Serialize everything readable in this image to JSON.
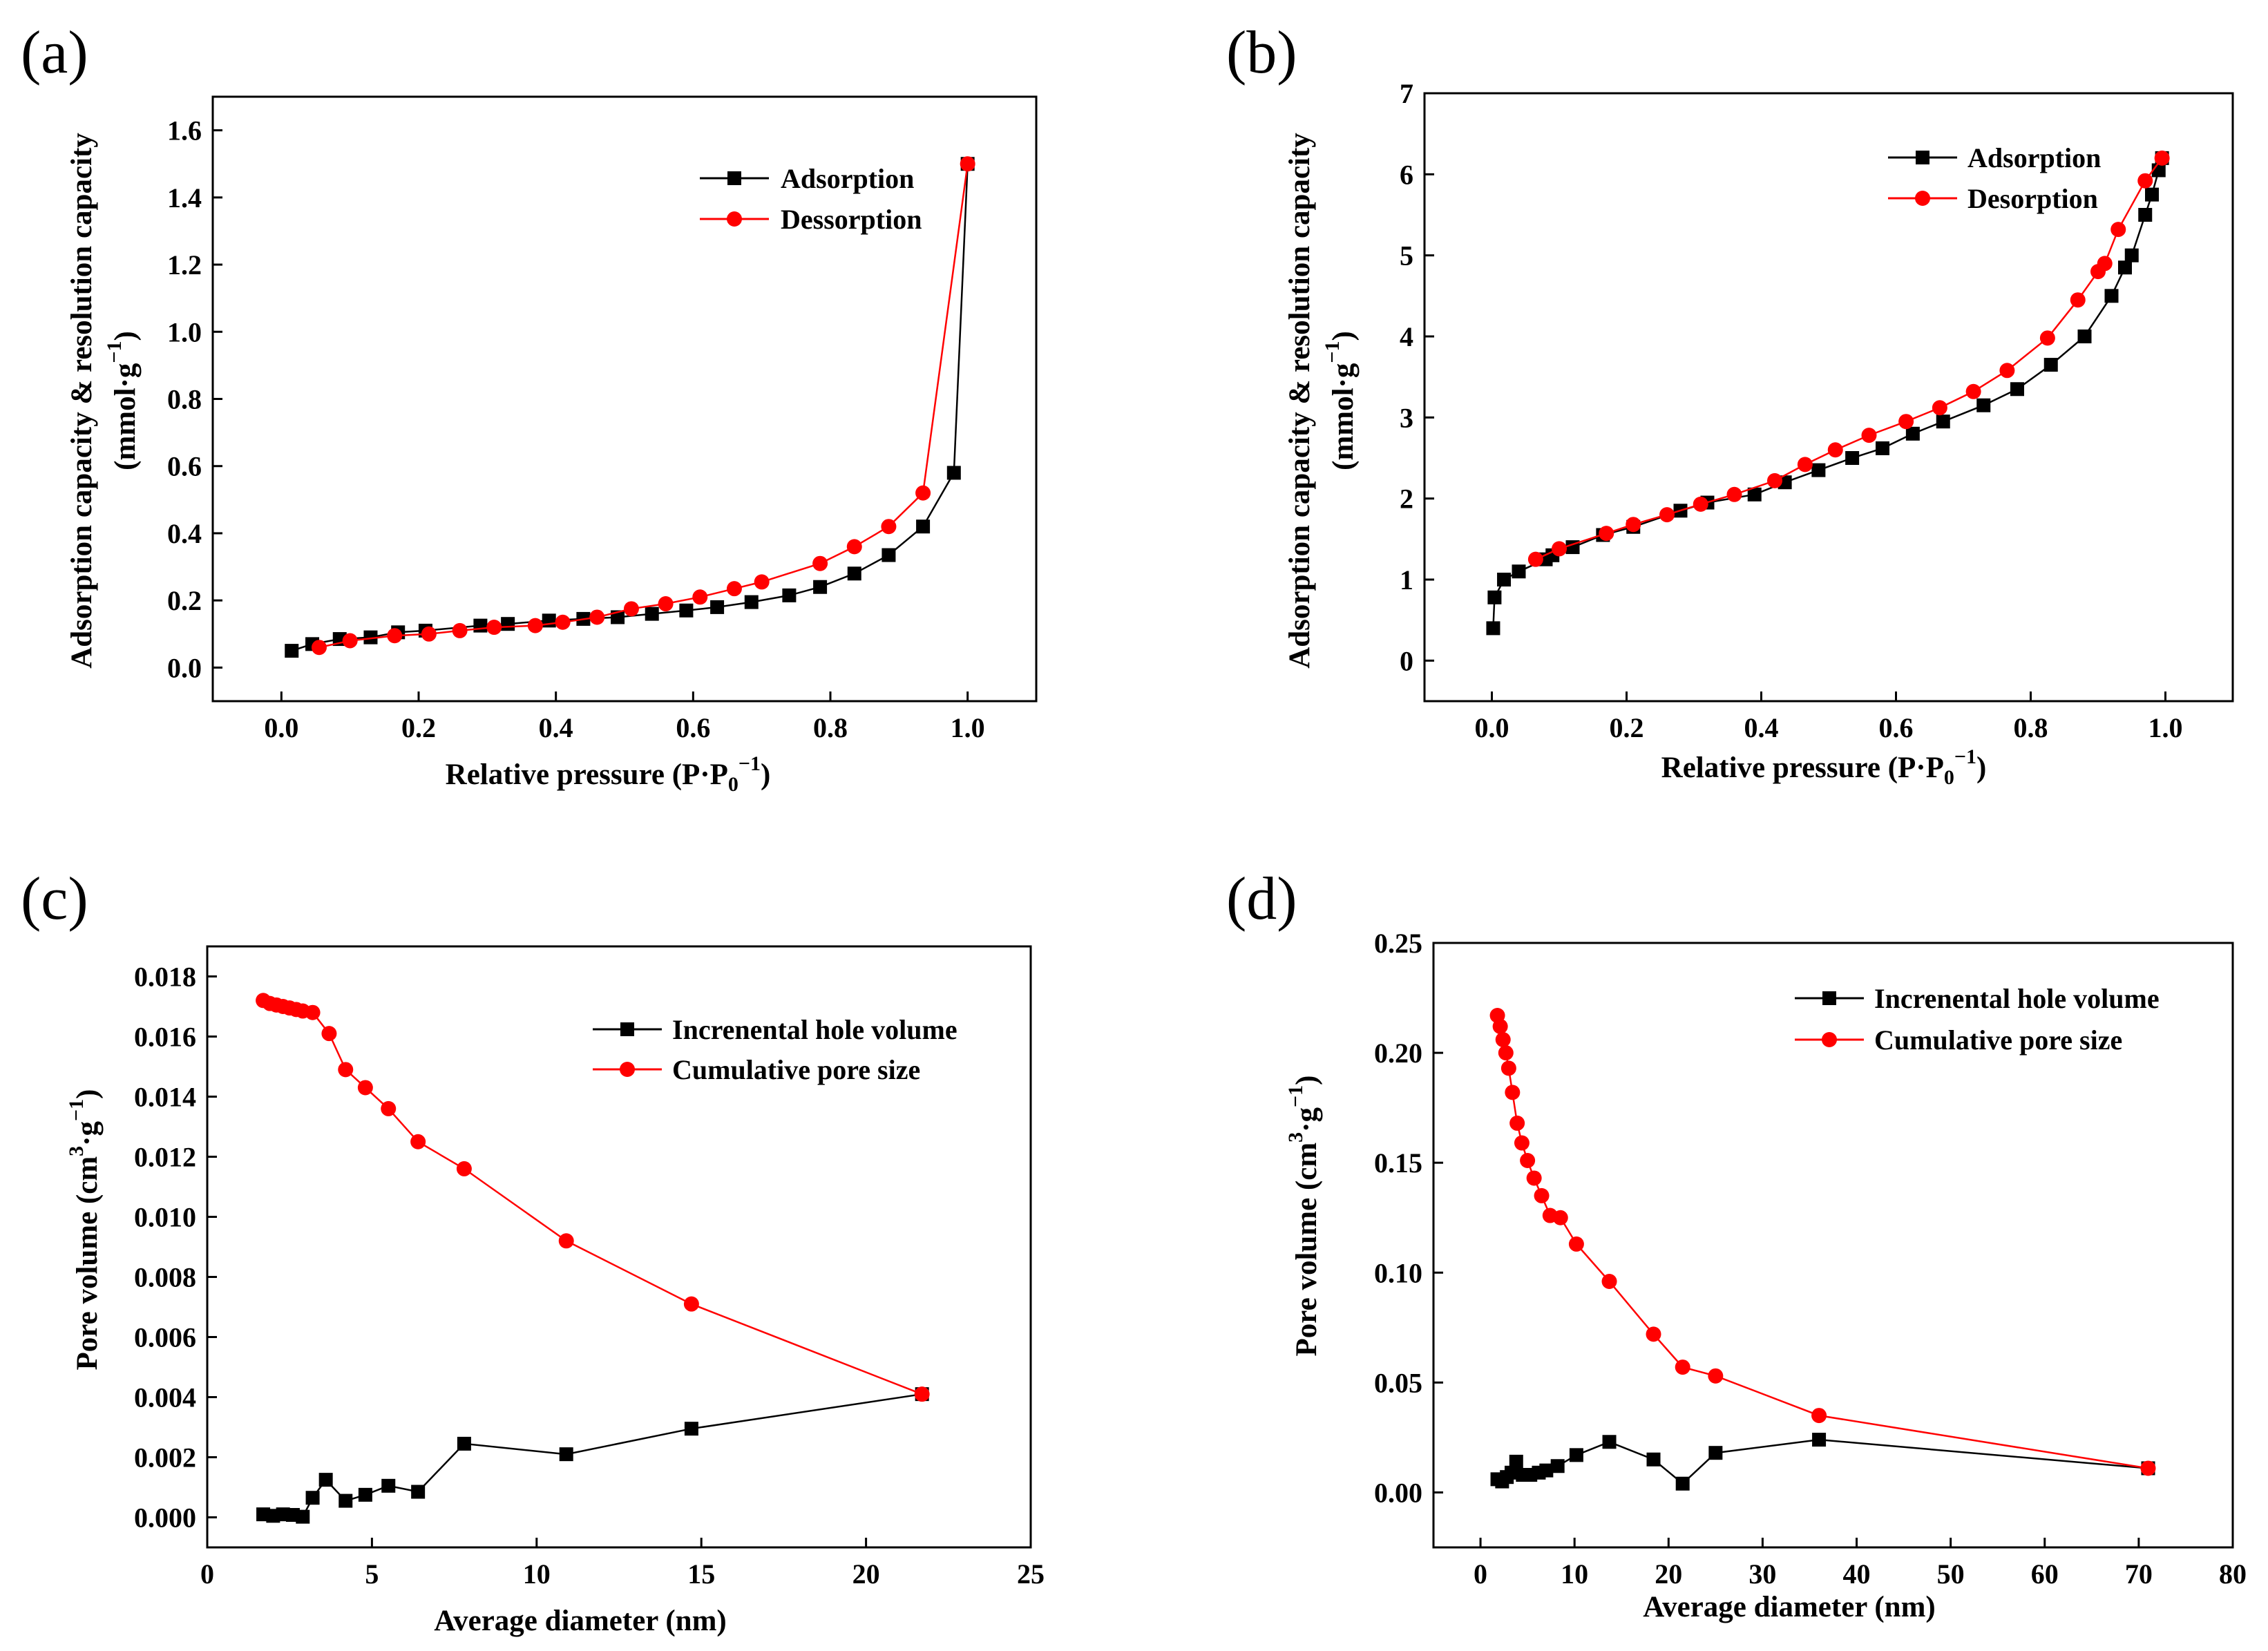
{
  "figure": {
    "panels": [
      "(a)",
      "(b)",
      "(c)",
      "(d)"
    ]
  },
  "colors": {
    "adsorption": "#000000",
    "desorption": "#ff0000",
    "axis": "#000000"
  },
  "chart_data": [
    {
      "id": "a",
      "type": "line",
      "panel_label": "(a)",
      "xlabel": "Relative pressure (P·P0−1)",
      "xlabel_main": "Relative pressure (P·P",
      "xlabel_sub": "0",
      "xlabel_sup": "−1",
      "xlabel_close": ")",
      "ylabel": "Adsorption capacity & resolution capacity (mmol·g−1)",
      "ylabel_line1": "Adsorption capacity & resolution capacity",
      "ylabel_line2_main": "(mmol·g",
      "ylabel_line2_sup": "−1",
      "ylabel_line2_close": ")",
      "xlim": [
        -0.1,
        1.1
      ],
      "ylim": [
        -0.1,
        1.7
      ],
      "xticks": [
        0.0,
        0.2,
        0.4,
        0.6,
        0.8,
        1.0
      ],
      "xtick_labels": [
        "0.0",
        "0.2",
        "0.4",
        "0.6",
        "0.8",
        "1.0"
      ],
      "yticks": [
        0.0,
        0.2,
        0.4,
        0.6,
        0.8,
        1.0,
        1.2,
        1.4,
        1.6
      ],
      "ytick_labels": [
        "0.0",
        "0.2",
        "0.4",
        "0.6",
        "0.8",
        "1.0",
        "1.2",
        "1.4",
        "1.6"
      ],
      "legend": [
        "Adsorption",
        "Dessorption"
      ],
      "series": [
        {
          "name": "Adsorption",
          "marker": "square",
          "x": [
            0.015,
            0.045,
            0.085,
            0.13,
            0.17,
            0.21,
            0.29,
            0.33,
            0.39,
            0.44,
            0.49,
            0.54,
            0.59,
            0.635,
            0.685,
            0.74,
            0.785,
            0.835,
            0.885,
            0.935,
            0.98,
            1.0
          ],
          "y": [
            0.05,
            0.07,
            0.085,
            0.09,
            0.105,
            0.11,
            0.125,
            0.13,
            0.14,
            0.145,
            0.15,
            0.16,
            0.17,
            0.18,
            0.195,
            0.215,
            0.24,
            0.28,
            0.335,
            0.42,
            0.58,
            1.5
          ]
        },
        {
          "name": "Dessorption",
          "marker": "circle",
          "x": [
            0.055,
            0.1,
            0.165,
            0.215,
            0.26,
            0.31,
            0.37,
            0.41,
            0.46,
            0.51,
            0.56,
            0.61,
            0.66,
            0.7,
            0.785,
            0.835,
            0.885,
            0.935,
            1.0
          ],
          "y": [
            0.06,
            0.08,
            0.095,
            0.1,
            0.11,
            0.12,
            0.125,
            0.135,
            0.15,
            0.175,
            0.19,
            0.21,
            0.235,
            0.255,
            0.31,
            0.36,
            0.42,
            0.52,
            1.5
          ]
        }
      ]
    },
    {
      "id": "b",
      "type": "line",
      "panel_label": "(b)",
      "xlabel": "Relative pressure (P·P0−1)",
      "xlabel_main": "Relative pressure (P·P",
      "xlabel_sub": "0",
      "xlabel_sup": "−1",
      "xlabel_close": ")",
      "ylabel": "Adsorption capacity & resolution capacity (mmol·g−1)",
      "ylabel_line1": "Adsorption capacity & resolution capacity",
      "ylabel_line2_main": "(mmol·g",
      "ylabel_line2_sup": "−1",
      "ylabel_line2_close": ")",
      "xlim": [
        -0.1,
        1.1
      ],
      "ylim": [
        -0.5,
        7
      ],
      "xticks": [
        0.0,
        0.2,
        0.4,
        0.6,
        0.8,
        1.0
      ],
      "xtick_labels": [
        "0.0",
        "0.2",
        "0.4",
        "0.6",
        "0.8",
        "1.0"
      ],
      "yticks": [
        0,
        1,
        2,
        3,
        4,
        5,
        6,
        7
      ],
      "ytick_labels": [
        "0",
        "1",
        "2",
        "3",
        "4",
        "5",
        "6",
        "7"
      ],
      "legend": [
        "Adsorption",
        "Desorption"
      ],
      "series": [
        {
          "name": "Adsorption",
          "marker": "square",
          "x": [
            0.002,
            0.004,
            0.018,
            0.04,
            0.08,
            0.09,
            0.12,
            0.165,
            0.21,
            0.28,
            0.32,
            0.39,
            0.435,
            0.485,
            0.535,
            0.58,
            0.625,
            0.67,
            0.73,
            0.78,
            0.83,
            0.88,
            0.92,
            0.94,
            0.95,
            0.97,
            0.98,
            0.99,
            0.995
          ],
          "y": [
            0.4,
            0.78,
            1.0,
            1.1,
            1.25,
            1.3,
            1.4,
            1.55,
            1.65,
            1.85,
            1.95,
            2.05,
            2.2,
            2.35,
            2.5,
            2.62,
            2.8,
            2.95,
            3.15,
            3.35,
            3.65,
            4.0,
            4.5,
            4.85,
            5.0,
            5.5,
            5.75,
            6.05,
            6.2
          ]
        },
        {
          "name": "Desorption",
          "marker": "circle",
          "x": [
            0.065,
            0.1,
            0.17,
            0.21,
            0.26,
            0.31,
            0.36,
            0.42,
            0.465,
            0.51,
            0.56,
            0.615,
            0.665,
            0.715,
            0.765,
            0.825,
            0.87,
            0.9,
            0.91,
            0.93,
            0.97,
            0.995
          ],
          "y": [
            1.25,
            1.38,
            1.57,
            1.68,
            1.8,
            1.93,
            2.05,
            2.22,
            2.42,
            2.6,
            2.78,
            2.95,
            3.12,
            3.32,
            3.58,
            3.98,
            4.45,
            4.8,
            4.9,
            5.32,
            5.92,
            6.2
          ]
        }
      ]
    },
    {
      "id": "c",
      "type": "line",
      "panel_label": "(c)",
      "xlabel": "Average diameter (nm)",
      "ylabel": "Pore volume (cm3·g−1)",
      "ylabel_main": "Pore volume (cm",
      "ylabel_sup1": "3",
      "ylabel_mid": "·g",
      "ylabel_sup2": "−1",
      "ylabel_close": ")",
      "xlim": [
        0,
        25
      ],
      "ylim": [
        -0.001,
        0.019
      ],
      "xticks": [
        0,
        5,
        10,
        15,
        20,
        25
      ],
      "xtick_labels": [
        "0",
        "5",
        "10",
        "15",
        "20",
        "25"
      ],
      "yticks": [
        0.0,
        0.002,
        0.004,
        0.006,
        0.008,
        0.01,
        0.012,
        0.014,
        0.016,
        0.018
      ],
      "ytick_labels": [
        "0.000",
        "0.002",
        "0.004",
        "0.006",
        "0.008",
        "0.010",
        "0.012",
        "0.014",
        "0.016",
        "0.018"
      ],
      "legend": [
        "Increnental hole volume",
        "Cumulative pore size"
      ],
      "series": [
        {
          "name": "Increnental hole volume",
          "marker": "square",
          "x": [
            1.7,
            2.0,
            2.3,
            2.6,
            2.9,
            3.2,
            3.6,
            4.2,
            4.8,
            5.5,
            6.4,
            7.8,
            10.9,
            14.7,
            21.7
          ],
          "y": [
            0.0001,
            5e-05,
            0.0001,
            8e-05,
            2e-05,
            0.00065,
            0.00125,
            0.00055,
            0.00075,
            0.00105,
            0.00085,
            0.00245,
            0.0021,
            0.00295,
            0.0041
          ]
        },
        {
          "name": "Cumulative pore size",
          "marker": "circle",
          "x": [
            1.7,
            1.9,
            2.1,
            2.3,
            2.5,
            2.7,
            2.9,
            3.2,
            3.7,
            4.2,
            4.8,
            5.5,
            6.4,
            7.8,
            10.9,
            14.7,
            21.7
          ],
          "y": [
            0.0172,
            0.0171,
            0.01705,
            0.017,
            0.01695,
            0.0169,
            0.01685,
            0.0168,
            0.0161,
            0.0149,
            0.0143,
            0.0136,
            0.0125,
            0.0116,
            0.0092,
            0.0071,
            0.0041
          ]
        }
      ]
    },
    {
      "id": "d",
      "type": "line",
      "panel_label": "(d)",
      "xlabel": "Average diameter (nm)",
      "ylabel": "Pore volume (cm3·g−1)",
      "ylabel_main": "Pore volume (cm",
      "ylabel_sup1": "3",
      "ylabel_mid": "·g",
      "ylabel_sup2": "−1",
      "ylabel_close": ")",
      "xlim": [
        -5,
        80
      ],
      "ylim": [
        -0.025,
        0.25
      ],
      "xticks": [
        0,
        10,
        20,
        30,
        40,
        50,
        60,
        70,
        80
      ],
      "xtick_labels": [
        "0",
        "10",
        "20",
        "30",
        "40",
        "50",
        "60",
        "70",
        "80"
      ],
      "yticks": [
        0.0,
        0.05,
        0.1,
        0.15,
        0.2,
        0.25
      ],
      "ytick_labels": [
        "0.00",
        "0.05",
        "0.10",
        "0.15",
        "0.20",
        "0.25"
      ],
      "legend": [
        "Increnental hole volume",
        "Cumulative pore size"
      ],
      "series": [
        {
          "name": "Increnental hole volume",
          "marker": "square",
          "x": [
            1.8,
            2.3,
            2.8,
            3.3,
            3.8,
            4.5,
            5.3,
            6.2,
            7.0,
            8.2,
            10.2,
            13.7,
            18.4,
            21.5,
            25.0,
            36.0,
            71.0
          ],
          "y": [
            0.006,
            0.005,
            0.007,
            0.009,
            0.014,
            0.008,
            0.008,
            0.009,
            0.01,
            0.012,
            0.017,
            0.023,
            0.015,
            0.004,
            0.018,
            0.024,
            0.011
          ]
        },
        {
          "name": "Cumulative pore size",
          "marker": "circle",
          "x": [
            1.8,
            2.1,
            2.4,
            2.7,
            3.0,
            3.4,
            3.9,
            4.4,
            5.0,
            5.7,
            6.5,
            7.4,
            8.5,
            10.2,
            13.7,
            18.4,
            21.5,
            25.0,
            36.0,
            71.0
          ],
          "y": [
            0.217,
            0.212,
            0.206,
            0.2,
            0.193,
            0.182,
            0.168,
            0.159,
            0.151,
            0.143,
            0.135,
            0.126,
            0.125,
            0.113,
            0.096,
            0.072,
            0.057,
            0.053,
            0.035,
            0.011
          ]
        }
      ]
    }
  ]
}
